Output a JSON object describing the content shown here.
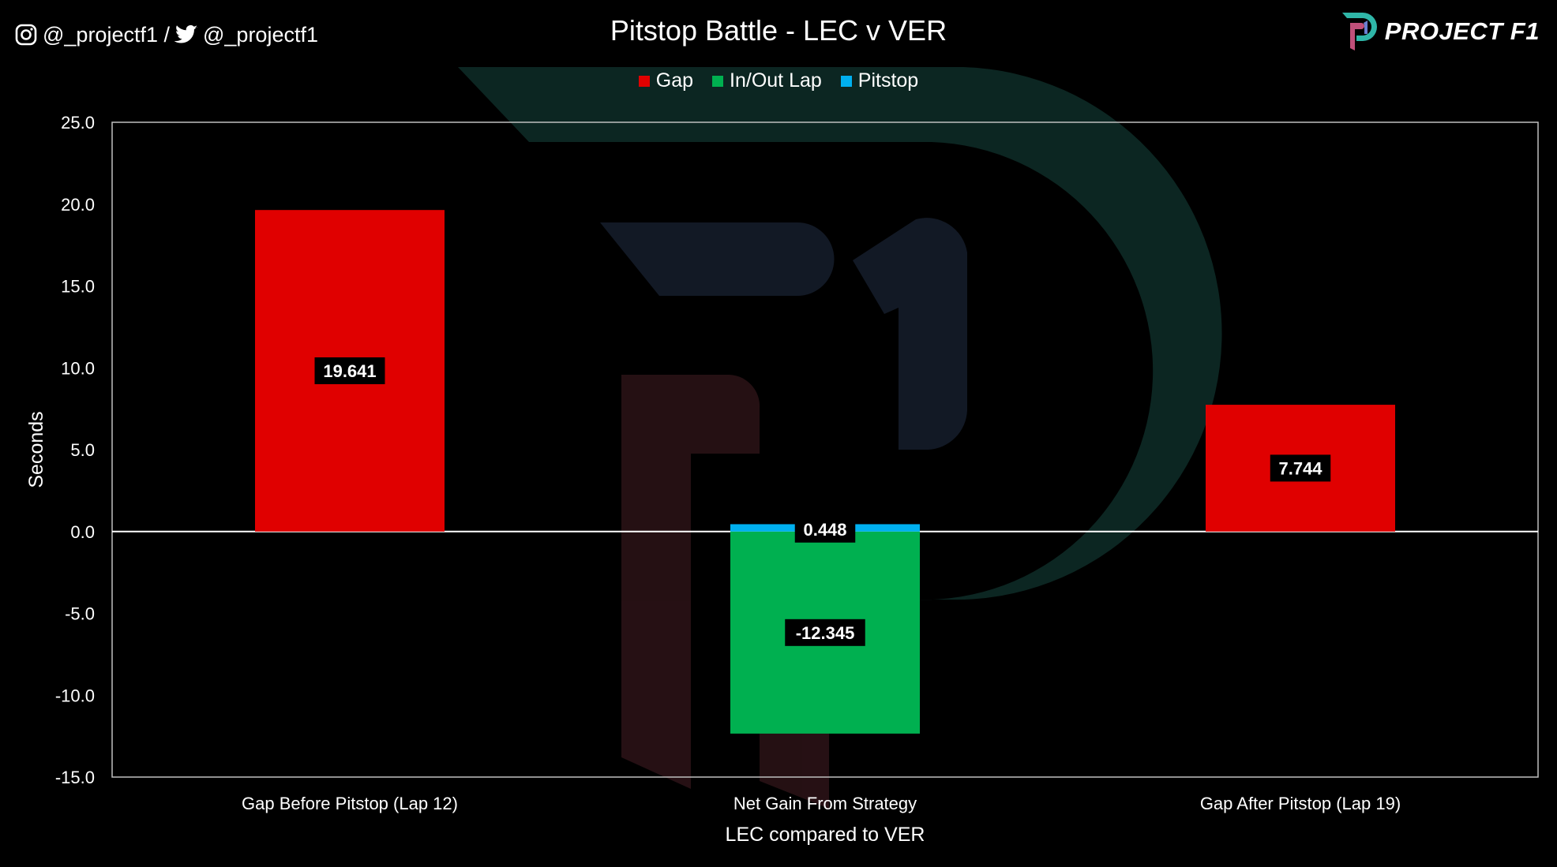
{
  "header": {
    "instagram_handle": "@_projectf1 /",
    "twitter_handle": "@_projectf1",
    "brand_name": "PROJECT F1",
    "icons": [
      "instagram-icon",
      "twitter-icon",
      "project-f1-logo"
    ]
  },
  "colors": {
    "background": "#000000",
    "gap": "#e00000",
    "in_out_lap": "#00b050",
    "pitstop": "#00b0f0",
    "watermark_red": "#2a1216",
    "watermark_teal": "#0d2a26",
    "watermark_navy": "#151c2a"
  },
  "chart_data": {
    "type": "bar",
    "title": "Pitstop Battle - LEC v VER",
    "xlabel": "LEC compared to VER",
    "ylabel": "Seconds",
    "ylim": [
      -15,
      25
    ],
    "yticks": [
      25,
      20,
      15,
      10,
      5,
      0,
      -5,
      -10,
      -15
    ],
    "ytick_labels": [
      "25.0",
      "20.0",
      "15.0",
      "10.0",
      "5.0",
      "0.0",
      "-5.0",
      "-10.0",
      "-15.0"
    ],
    "legend_position": "top",
    "grid": false,
    "categories": [
      "Gap Before Pitstop (Lap 12)",
      "Net Gain From Strategy",
      "Gap After Pitstop (Lap 19)"
    ],
    "series": [
      {
        "name": "Gap",
        "color": "#e00000",
        "values": [
          19.641,
          null,
          7.744
        ],
        "labels": [
          "19.641",
          "",
          "7.744"
        ]
      },
      {
        "name": "In/Out Lap",
        "color": "#00b050",
        "values": [
          null,
          -12.345,
          null
        ],
        "labels": [
          "",
          "-12.345",
          ""
        ]
      },
      {
        "name": "Pitstop",
        "color": "#00b0f0",
        "values": [
          null,
          0.448,
          null
        ],
        "labels": [
          "",
          "0.448",
          ""
        ]
      }
    ]
  }
}
